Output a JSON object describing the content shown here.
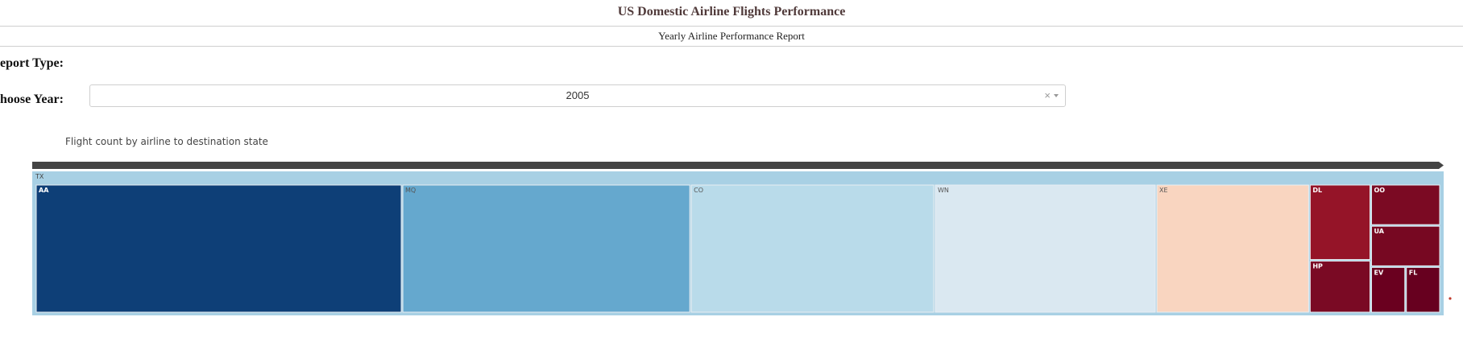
{
  "header": {
    "title": "US Domestic Airline Flights Performance",
    "subtitle": "Yearly Airline Performance Report"
  },
  "form": {
    "report_type_label": "eport Type:",
    "year_label": "hoose Year:",
    "year_value": "2005",
    "clear_glyph": "×"
  },
  "chart_data": {
    "type": "treemap",
    "title": "Flight count by airline to destination state",
    "root": "TX",
    "items": [
      {
        "label": "AA",
        "value": 263,
        "color": "#0e3f77"
      },
      {
        "label": "MQ",
        "value": 207,
        "color": "#65a8ce"
      },
      {
        "label": "CO",
        "value": 175,
        "color": "#b9dbea"
      },
      {
        "label": "WN",
        "value": 159,
        "color": "#dae8f1"
      },
      {
        "label": "XE",
        "value": 110,
        "color": "#f9d5c0"
      },
      {
        "label": "DL",
        "value": 26,
        "color": "#951428"
      },
      {
        "label": "HP",
        "value": 18,
        "color": "#7a0a24"
      },
      {
        "label": "OO",
        "value": 16,
        "color": "#7b0a23"
      },
      {
        "label": "UA",
        "value": 16,
        "color": "#770822"
      },
      {
        "label": "EV",
        "value": 9,
        "color": "#6a001f"
      },
      {
        "label": "FL",
        "value": 9,
        "color": "#67001f"
      }
    ],
    "root_color": "#a8d0e4",
    "pathbar_color": "#444444"
  }
}
